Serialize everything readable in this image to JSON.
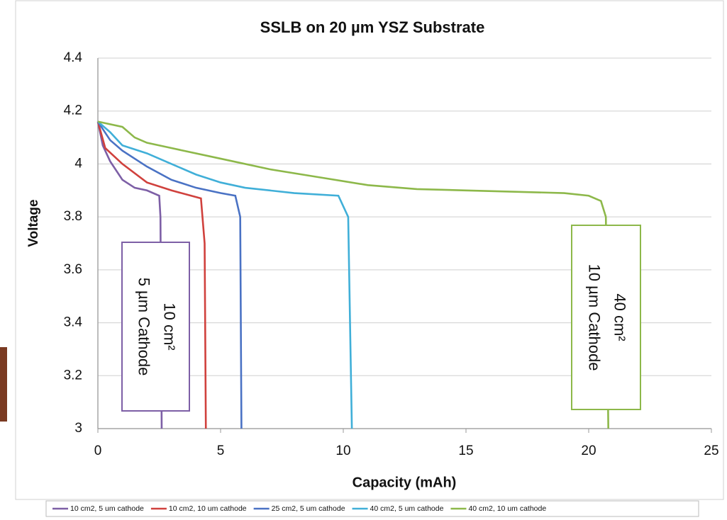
{
  "chart_data": {
    "type": "line",
    "title": "SSLB on 20 µm YSZ Substrate",
    "x_label": "Capacity (mAh)",
    "y_label": "Voltage",
    "xlim": [
      0,
      25
    ],
    "xticks": [
      0,
      5,
      10,
      15,
      20,
      25
    ],
    "ylim": [
      3,
      4.4
    ],
    "yticks": [
      3,
      3.2,
      3.4,
      3.6,
      3.8,
      4,
      4.2,
      4.4
    ],
    "grid": true,
    "series": [
      {
        "name": "10 cm2, 5 um cathode",
        "color": "#7d5fa6",
        "x": [
          0,
          0.2,
          0.5,
          1,
          1.5,
          2,
          2.5,
          2.55,
          2.6
        ],
        "values": [
          4.16,
          4.07,
          4.01,
          3.94,
          3.91,
          3.9,
          3.88,
          3.8,
          3.0
        ]
      },
      {
        "name": "10 cm2, 10 um cathode",
        "color": "#d0413d",
        "x": [
          0,
          0.3,
          1,
          2,
          3,
          3.8,
          4.2,
          4.35,
          4.4
        ],
        "values": [
          4.16,
          4.06,
          4.0,
          3.93,
          3.9,
          3.88,
          3.87,
          3.7,
          3.0
        ]
      },
      {
        "name": "25 cm2, 5 um cathode",
        "color": "#4a72c4",
        "x": [
          0,
          0.5,
          1,
          2,
          3,
          4,
          5,
          5.6,
          5.8,
          5.85
        ],
        "values": [
          4.16,
          4.09,
          4.05,
          3.99,
          3.94,
          3.91,
          3.89,
          3.88,
          3.8,
          3.0
        ]
      },
      {
        "name": "40 cm2, 5 um cathode",
        "color": "#40afd8",
        "x": [
          0,
          0.5,
          1,
          2,
          3,
          4,
          5,
          6,
          8,
          9.8,
          10.2,
          10.35
        ],
        "values": [
          4.16,
          4.12,
          4.07,
          4.04,
          4.0,
          3.96,
          3.93,
          3.91,
          3.89,
          3.88,
          3.8,
          3.0
        ]
      },
      {
        "name": "40 cm2, 10 um cathode",
        "color": "#8db84a",
        "x": [
          0,
          1,
          1.5,
          2,
          3,
          5,
          7,
          9,
          11,
          13,
          15,
          17,
          19,
          20,
          20.5,
          20.7,
          20.8
        ],
        "values": [
          4.16,
          4.14,
          4.1,
          4.08,
          4.06,
          4.02,
          3.98,
          3.95,
          3.92,
          3.905,
          3.9,
          3.895,
          3.89,
          3.88,
          3.86,
          3.8,
          3.0
        ]
      }
    ],
    "annotations": [
      {
        "lines": [
          "10 cm²",
          "5 µm Cathode"
        ],
        "color": "#7d5fa6"
      },
      {
        "lines": [
          "40 cm²",
          "10 µm Cathode"
        ],
        "color": "#8db84a"
      }
    ]
  }
}
